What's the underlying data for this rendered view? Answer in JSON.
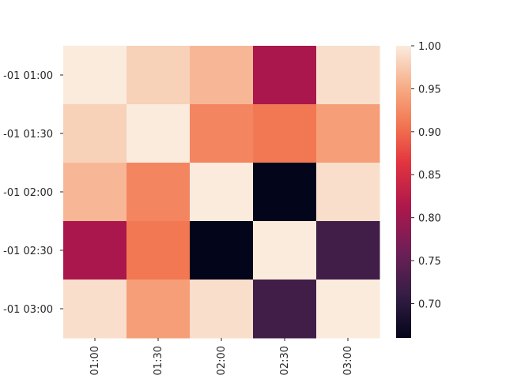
{
  "chart_data": {
    "type": "heatmap",
    "title": "",
    "xlabel": "",
    "ylabel": "",
    "x_categories": [
      "01:00",
      "01:30",
      "02:00",
      "02:30",
      "03:00"
    ],
    "y_categories": [
      "-01 01:00",
      "-01 01:30",
      "-01 02:00",
      "-01 02:30",
      "-01 03:00"
    ],
    "values": [
      [
        1.0,
        0.98,
        0.96,
        0.81,
        0.99
      ],
      [
        0.98,
        1.0,
        0.92,
        0.91,
        0.94
      ],
      [
        0.96,
        0.92,
        1.0,
        0.66,
        0.99
      ],
      [
        0.81,
        0.91,
        0.66,
        1.0,
        0.72
      ],
      [
        0.99,
        0.94,
        0.99,
        0.72,
        1.0
      ]
    ],
    "colorbar": {
      "vmin": 0.66,
      "vmax": 1.0,
      "ticks": [
        0.7,
        0.75,
        0.8,
        0.85,
        0.9,
        0.95,
        1.0
      ],
      "tick_labels": [
        "0.70",
        "0.75",
        "0.80",
        "0.85",
        "0.90",
        "0.95",
        "1.00"
      ],
      "colormap": "rocket"
    },
    "grid": false
  }
}
